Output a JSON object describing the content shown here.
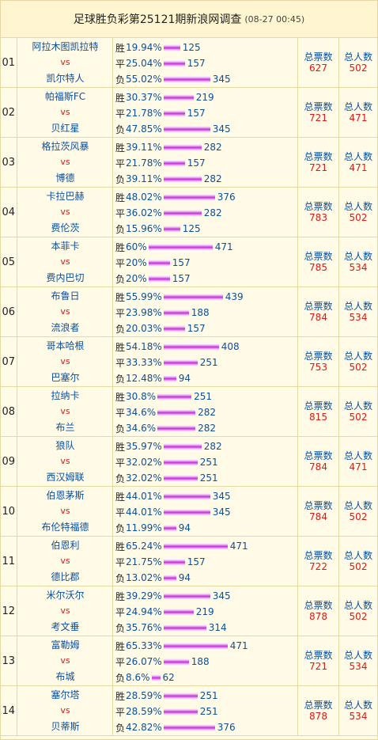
{
  "header": {
    "title": "足球胜负彩第25121期新浪网调查",
    "datetime": "(08-27 00:45)"
  },
  "labels": {
    "win": "胜",
    "draw": "平",
    "lose": "负",
    "vs": "vs",
    "total_votes": "总票数",
    "total_people": "总人数"
  },
  "bar_color": "#c22fd6",
  "rows": [
    {
      "no": "01",
      "home": "阿拉木图凯拉特",
      "away": "凯尔特人",
      "win_pct": "19.94%",
      "win_cnt": "125",
      "draw_pct": "25.04%",
      "draw_cnt": "157",
      "lose_pct": "55.02%",
      "lose_cnt": "345",
      "votes": "627",
      "people": "502"
    },
    {
      "no": "02",
      "home": "帕福斯FC",
      "away": "贝红星",
      "win_pct": "30.37%",
      "win_cnt": "219",
      "draw_pct": "21.78%",
      "draw_cnt": "157",
      "lose_pct": "47.85%",
      "lose_cnt": "345",
      "votes": "721",
      "people": "471"
    },
    {
      "no": "03",
      "home": "格拉茨风暴",
      "away": "博德",
      "win_pct": "39.11%",
      "win_cnt": "282",
      "draw_pct": "21.78%",
      "draw_cnt": "157",
      "lose_pct": "39.11%",
      "lose_cnt": "282",
      "votes": "721",
      "people": "471"
    },
    {
      "no": "04",
      "home": "卡拉巴赫",
      "away": "费伦茨",
      "win_pct": "48.02%",
      "win_cnt": "376",
      "draw_pct": "36.02%",
      "draw_cnt": "282",
      "lose_pct": "15.96%",
      "lose_cnt": "125",
      "votes": "783",
      "people": "502"
    },
    {
      "no": "05",
      "home": "本菲卡",
      "away": "费内巴切",
      "win_pct": "60%",
      "win_cnt": "471",
      "draw_pct": "20%",
      "draw_cnt": "157",
      "lose_pct": "20%",
      "lose_cnt": "157",
      "votes": "785",
      "people": "534"
    },
    {
      "no": "06",
      "home": "布鲁日",
      "away": "流浪者",
      "win_pct": "55.99%",
      "win_cnt": "439",
      "draw_pct": "23.98%",
      "draw_cnt": "188",
      "lose_pct": "20.03%",
      "lose_cnt": "157",
      "votes": "784",
      "people": "534"
    },
    {
      "no": "07",
      "home": "哥本哈根",
      "away": "巴塞尔",
      "win_pct": "54.18%",
      "win_cnt": "408",
      "draw_pct": "33.33%",
      "draw_cnt": "251",
      "lose_pct": "12.48%",
      "lose_cnt": "94",
      "votes": "753",
      "people": "502"
    },
    {
      "no": "08",
      "home": "拉纳卡",
      "away": "布兰",
      "win_pct": "30.8%",
      "win_cnt": "251",
      "draw_pct": "34.6%",
      "draw_cnt": "282",
      "lose_pct": "34.6%",
      "lose_cnt": "282",
      "votes": "815",
      "people": "502"
    },
    {
      "no": "09",
      "home": "狼队",
      "away": "西汉姆联",
      "win_pct": "35.97%",
      "win_cnt": "282",
      "draw_pct": "32.02%",
      "draw_cnt": "251",
      "lose_pct": "32.02%",
      "lose_cnt": "251",
      "votes": "784",
      "people": "471"
    },
    {
      "no": "10",
      "home": "伯恩茅斯",
      "away": "布伦特福德",
      "win_pct": "44.01%",
      "win_cnt": "345",
      "draw_pct": "44.01%",
      "draw_cnt": "345",
      "lose_pct": "11.99%",
      "lose_cnt": "94",
      "votes": "784",
      "people": "502"
    },
    {
      "no": "11",
      "home": "伯恩利",
      "away": "德比郡",
      "win_pct": "65.24%",
      "win_cnt": "471",
      "draw_pct": "21.75%",
      "draw_cnt": "157",
      "lose_pct": "13.02%",
      "lose_cnt": "94",
      "votes": "722",
      "people": "502"
    },
    {
      "no": "12",
      "home": "米尔沃尔",
      "away": "考文垂",
      "win_pct": "39.29%",
      "win_cnt": "345",
      "draw_pct": "24.94%",
      "draw_cnt": "219",
      "lose_pct": "35.76%",
      "lose_cnt": "314",
      "votes": "878",
      "people": "502"
    },
    {
      "no": "13",
      "home": "富勒姆",
      "away": "布城",
      "win_pct": "65.33%",
      "win_cnt": "471",
      "draw_pct": "26.07%",
      "draw_cnt": "188",
      "lose_pct": "8.6%",
      "lose_cnt": "62",
      "votes": "721",
      "people": "534"
    },
    {
      "no": "14",
      "home": "塞尔塔",
      "away": "贝蒂斯",
      "win_pct": "28.59%",
      "win_cnt": "251",
      "draw_pct": "28.59%",
      "draw_cnt": "251",
      "lose_pct": "42.82%",
      "lose_cnt": "376",
      "votes": "878",
      "people": "534"
    }
  ]
}
